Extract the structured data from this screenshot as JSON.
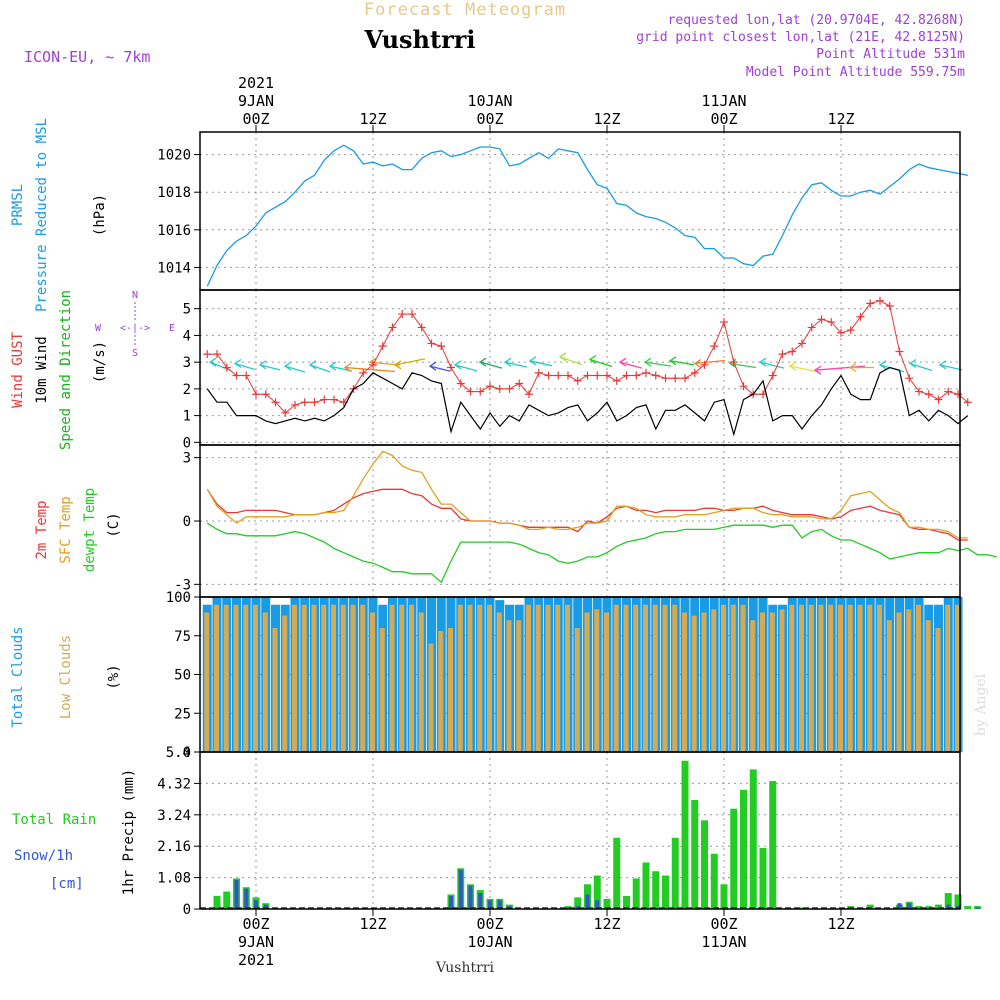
{
  "header": {
    "forecast_title": "Forecast Meteogram",
    "location": "Vushtrri",
    "model": "ICON-EU, ~ 7km",
    "requested": "requested lon,lat (20.9704E, 42.8268N)",
    "grid_point": "grid point closest lon,lat (21E, 42.8125N)",
    "point_altitude": "Point Altitude 531m",
    "model_altitude": "Model Point Altitude 559.75m"
  },
  "footer": {
    "location": "Vushtrri",
    "credit": "by Angel"
  },
  "colors": {
    "pressure": "#1a9be6",
    "gust": "#e83838",
    "wind": "#000000",
    "wind_label": "#19b319",
    "t2m": "#e83838",
    "sfc": "#e0a020",
    "dewpt": "#22cc22",
    "total_clouds": "#1a9be6",
    "low_clouds": "#d4aa55",
    "rain": "#22cc22",
    "snow": "#3355cc",
    "compass": "#a040d0",
    "info": "#a040d0"
  },
  "time_axis": {
    "top_labels": [
      {
        "h": 0,
        "lines": [
          "2021",
          "9JAN",
          "00Z"
        ]
      },
      {
        "h": 12,
        "lines": [
          "12Z"
        ]
      },
      {
        "h": 24,
        "lines": [
          "10JAN",
          "00Z"
        ]
      },
      {
        "h": 36,
        "lines": [
          "12Z"
        ]
      },
      {
        "h": 48,
        "lines": [
          "11JAN",
          "00Z"
        ]
      },
      {
        "h": 60,
        "lines": [
          "12Z"
        ]
      }
    ],
    "bottom_labels": [
      {
        "h": 0,
        "lines": [
          "00Z",
          "9JAN",
          "2021"
        ]
      },
      {
        "h": 12,
        "lines": [
          "12Z"
        ]
      },
      {
        "h": 24,
        "lines": [
          "00Z",
          "10JAN"
        ]
      },
      {
        "h": 36,
        "lines": [
          "12Z"
        ]
      },
      {
        "h": 48,
        "lines": [
          "00Z",
          "11JAN"
        ]
      },
      {
        "h": 60,
        "lines": [
          "12Z"
        ]
      }
    ]
  },
  "panels": {
    "pressure": {
      "labels": [
        "PRMSL",
        "Pressure Reduced to MSL",
        "(hPa)"
      ]
    },
    "wind": {
      "labels": [
        "Wind GUST",
        "10m Wind",
        "Speed and Direction",
        "(m/s)"
      ],
      "compass": {
        "n": "N",
        "s": "S",
        "w": "W",
        "e": "E",
        "arrow": "<-|->"
      }
    },
    "temp": {
      "labels": [
        "2m Temp",
        "SFC Temp",
        "dewpt Temp",
        "(C)"
      ]
    },
    "clouds": {
      "labels": [
        "Total Clouds",
        "Low Clouds",
        "(%)"
      ]
    },
    "precip": {
      "labels": [
        "Total Rain",
        "Snow/1h",
        "[cm]",
        "1hr Precip (mm)"
      ]
    }
  },
  "chart_data": [
    {
      "type": "line",
      "title": "PRMSL Pressure Reduced to MSL",
      "ylabel": "(hPa)",
      "ylim": [
        1012.8,
        1021.2
      ],
      "yticks": [
        1014,
        1016,
        1018,
        1020
      ],
      "x_hours_start": -5,
      "series": [
        {
          "name": "PRMSL",
          "values": [
            1013.0,
            1014.1,
            1014.9,
            1015.4,
            1015.7,
            1016.2,
            1016.9,
            1017.2,
            1017.5,
            1018.0,
            1018.6,
            1018.9,
            1019.7,
            1020.2,
            1020.5,
            1020.2,
            1019.5,
            1019.6,
            1019.4,
            1019.5,
            1019.2,
            1019.2,
            1019.8,
            1020.1,
            1020.2,
            1019.9,
            1020.0,
            1020.2,
            1020.4,
            1020.4,
            1020.3,
            1019.4,
            1019.5,
            1019.8,
            1020.1,
            1019.8,
            1020.3,
            1020.2,
            1020.1,
            1019.2,
            1018.4,
            1018.2,
            1017.4,
            1017.3,
            1016.9,
            1016.7,
            1016.6,
            1016.4,
            1016.1,
            1015.7,
            1015.6,
            1015.0,
            1015.0,
            1014.5,
            1014.5,
            1014.2,
            1014.1,
            1014.6,
            1014.7,
            1015.7,
            1016.8,
            1017.7,
            1018.4,
            1018.5,
            1018.1,
            1017.8,
            1017.8,
            1018.0,
            1018.1,
            1017.9,
            1018.3,
            1018.7,
            1019.2,
            1019.5,
            1019.3,
            1019.2,
            1019.1,
            1019.0,
            1018.9
          ]
        }
      ]
    },
    {
      "type": "line",
      "title": "Wind GUST / 10m Wind Speed and Direction",
      "ylabel": "(m/s)",
      "ylim": [
        -0.1,
        5.7
      ],
      "yticks": [
        0,
        1,
        2,
        3,
        4,
        5
      ],
      "x_hours_start": -5,
      "series": [
        {
          "name": "Wind GUST",
          "values": [
            3.3,
            3.3,
            2.8,
            2.5,
            2.5,
            1.8,
            1.8,
            1.5,
            1.1,
            1.4,
            1.5,
            1.5,
            1.6,
            1.6,
            1.5,
            2.0,
            2.6,
            2.9,
            3.6,
            4.3,
            4.8,
            4.8,
            4.3,
            3.7,
            3.6,
            2.8,
            2.2,
            1.9,
            1.9,
            2.1,
            2.0,
            2.0,
            2.2,
            1.8,
            2.6,
            2.5,
            2.5,
            2.5,
            2.3,
            2.5,
            2.5,
            2.5,
            2.3,
            2.5,
            2.5,
            2.6,
            2.5,
            2.4,
            2.4,
            2.4,
            2.6,
            2.9,
            3.6,
            4.5,
            3.0,
            2.1,
            1.8,
            1.8,
            2.5,
            3.3,
            3.4,
            3.7,
            4.3,
            4.6,
            4.5,
            4.1,
            4.2,
            4.7,
            5.2,
            5.3,
            5.1,
            3.4,
            2.4,
            1.9,
            1.8,
            1.6,
            1.9,
            1.8,
            1.5
          ]
        },
        {
          "name": "10m Wind",
          "values": [
            2.0,
            1.5,
            1.5,
            1.0,
            1.0,
            1.0,
            0.8,
            0.7,
            0.8,
            0.9,
            0.8,
            0.9,
            0.8,
            1.0,
            1.3,
            2.0,
            2.2,
            2.6,
            2.4,
            2.2,
            2.0,
            2.6,
            2.5,
            2.3,
            2.2,
            0.4,
            1.5,
            1.0,
            0.5,
            1.1,
            0.6,
            1.0,
            0.8,
            1.4,
            1.2,
            1.0,
            1.1,
            1.3,
            1.4,
            0.8,
            1.1,
            1.5,
            0.8,
            1.0,
            1.3,
            1.4,
            0.5,
            1.2,
            1.2,
            1.4,
            1.1,
            0.8,
            1.5,
            1.6,
            0.3,
            1.6,
            1.8,
            2.3,
            0.8,
            1.0,
            1.0,
            0.5,
            1.0,
            1.4,
            2.0,
            2.5,
            1.8,
            1.6,
            1.6,
            2.6,
            2.8,
            2.7,
            1.0,
            1.2,
            0.8,
            1.2,
            1.0,
            0.7,
            1.0
          ]
        }
      ]
    },
    {
      "type": "line",
      "title": "2m Temp / SFC Temp / dewpt Temp",
      "ylabel": "(C)",
      "ylim": [
        -3.6,
        3.6
      ],
      "yticks": [
        -3,
        0,
        3
      ],
      "x_hours_start": -5,
      "series": [
        {
          "name": "2m Temp",
          "values": [
            1.5,
            0.8,
            0.4,
            0.4,
            0.5,
            0.5,
            0.5,
            0.5,
            0.4,
            0.3,
            0.3,
            0.3,
            0.4,
            0.5,
            0.8,
            1.1,
            1.3,
            1.4,
            1.5,
            1.5,
            1.5,
            1.3,
            1.2,
            0.8,
            0.6,
            0.6,
            0.1,
            0.0,
            0.0,
            0.0,
            -0.1,
            -0.1,
            -0.2,
            -0.3,
            -0.3,
            -0.3,
            -0.3,
            -0.3,
            -0.5,
            0.0,
            -0.1,
            0.2,
            0.6,
            0.7,
            0.5,
            0.5,
            0.4,
            0.5,
            0.5,
            0.5,
            0.5,
            0.6,
            0.6,
            0.5,
            0.5,
            0.6,
            0.6,
            0.7,
            0.5,
            0.4,
            0.3,
            0.3,
            0.3,
            0.2,
            0.1,
            0.2,
            0.5,
            0.6,
            0.7,
            0.5,
            0.4,
            0.3,
            -0.3,
            -0.4,
            -0.4,
            -0.5,
            -0.6,
            -0.9,
            -0.9
          ]
        },
        {
          "name": "SFC Temp",
          "values": [
            1.5,
            0.7,
            0.3,
            -0.1,
            0.2,
            0.2,
            0.2,
            0.2,
            0.2,
            0.3,
            0.3,
            0.3,
            0.4,
            0.4,
            0.5,
            1.2,
            2.0,
            2.7,
            3.3,
            3.1,
            2.6,
            2.4,
            2.3,
            1.5,
            0.8,
            0.8,
            0.4,
            0.0,
            0.0,
            0.0,
            -0.1,
            -0.1,
            -0.2,
            -0.4,
            -0.4,
            -0.3,
            -0.4,
            -0.4,
            -0.3,
            -0.1,
            -0.1,
            0.0,
            0.7,
            0.7,
            0.6,
            0.3,
            0.2,
            0.2,
            0.2,
            0.3,
            0.3,
            0.3,
            0.4,
            0.5,
            0.6,
            0.6,
            0.6,
            0.4,
            0.3,
            0.3,
            0.2,
            0.2,
            0.2,
            0.1,
            0.1,
            0.5,
            1.2,
            1.3,
            1.4,
            1.0,
            0.6,
            0.4,
            -0.3,
            -0.3,
            -0.4,
            -0.4,
            -0.5,
            -0.8,
            -0.8
          ]
        },
        {
          "name": "dewpt Temp",
          "values": [
            -0.1,
            -0.4,
            -0.6,
            -0.6,
            -0.7,
            -0.7,
            -0.7,
            -0.7,
            -0.6,
            -0.5,
            -0.6,
            -0.8,
            -1.0,
            -1.3,
            -1.5,
            -1.7,
            -1.9,
            -2.0,
            -2.2,
            -2.4,
            -2.4,
            -2.5,
            -2.5,
            -2.5,
            -2.9,
            -1.9,
            -1.0,
            -1.0,
            -1.0,
            -1.0,
            -1.0,
            -1.0,
            -1.1,
            -1.3,
            -1.5,
            -1.6,
            -1.9,
            -2.0,
            -1.9,
            -1.7,
            -1.7,
            -1.5,
            -1.2,
            -1.0,
            -0.9,
            -0.8,
            -0.6,
            -0.5,
            -0.5,
            -0.4,
            -0.4,
            -0.4,
            -0.4,
            -0.3,
            -0.2,
            -0.2,
            -0.2,
            -0.2,
            -0.3,
            -0.2,
            -0.2,
            -0.8,
            -0.5,
            -0.4,
            -0.7,
            -0.9,
            -0.9,
            -1.1,
            -1.3,
            -1.5,
            -1.8,
            -1.7,
            -1.6,
            -1.5,
            -1.5,
            -1.5,
            -1.3,
            -1.4,
            -1.3,
            -1.6,
            -1.6,
            -1.7
          ]
        }
      ]
    },
    {
      "type": "bar",
      "title": "Total Clouds / Low Clouds",
      "ylabel": "(%)",
      "ylim": [
        0,
        100
      ],
      "yticks": [
        0,
        25,
        50,
        75,
        100
      ],
      "x_hours_start": -5,
      "series": [
        {
          "name": "Total Clouds",
          "values": [
            95,
            100,
            100,
            100,
            100,
            100,
            100,
            95,
            95,
            100,
            100,
            100,
            100,
            100,
            100,
            100,
            100,
            100,
            95,
            100,
            100,
            100,
            100,
            100,
            100,
            100,
            100,
            100,
            100,
            100,
            98,
            95,
            95,
            100,
            100,
            100,
            100,
            100,
            100,
            100,
            100,
            100,
            100,
            100,
            100,
            100,
            100,
            100,
            100,
            100,
            100,
            100,
            100,
            100,
            100,
            100,
            100,
            100,
            95,
            95,
            100,
            100,
            100,
            100,
            100,
            100,
            100,
            100,
            100,
            100,
            100,
            100,
            100,
            100,
            95,
            95,
            100,
            100,
            100,
            100,
            100,
            100
          ]
        },
        {
          "name": "Low Clouds",
          "values": [
            90,
            95,
            95,
            95,
            95,
            95,
            90,
            80,
            88,
            95,
            95,
            95,
            95,
            95,
            95,
            95,
            95,
            90,
            80,
            95,
            95,
            95,
            90,
            70,
            78,
            80,
            95,
            95,
            95,
            95,
            90,
            85,
            85,
            95,
            95,
            95,
            95,
            95,
            80,
            90,
            92,
            90,
            95,
            95,
            95,
            95,
            95,
            95,
            95,
            90,
            88,
            90,
            92,
            95,
            95,
            95,
            85,
            90,
            90,
            92,
            95,
            95,
            95,
            95,
            95,
            95,
            95,
            95,
            95,
            95,
            85,
            90,
            92,
            95,
            85,
            80,
            95,
            95,
            95,
            80,
            80,
            75
          ]
        }
      ]
    },
    {
      "type": "bar",
      "title": "Total Rain / Snow 1hr Precip",
      "ylabel": "1hr Precip (mm)",
      "ylim": [
        0,
        5.4
      ],
      "yticks": [
        0,
        1.08,
        2.16,
        3.24,
        4.32,
        5.4
      ],
      "x_hours_start": -4,
      "series": [
        {
          "name": "Total Rain",
          "values": [
            0.45,
            0.6,
            1.05,
            0.75,
            0.4,
            0.2,
            0,
            0,
            0,
            0,
            0,
            0,
            0,
            0,
            0,
            0,
            0,
            0,
            0,
            0,
            0,
            0,
            0,
            0,
            0.5,
            1.4,
            0.85,
            0.65,
            0.35,
            0.35,
            0.15,
            0,
            0,
            0,
            0,
            0,
            0.1,
            0.4,
            0.85,
            1.15,
            0.35,
            2.45,
            0.45,
            1.05,
            1.6,
            1.3,
            1.15,
            2.45,
            5.1,
            3.75,
            3.05,
            1.9,
            0.85,
            3.45,
            4.1,
            4.8,
            2.1,
            4.4,
            0,
            0,
            0.05,
            0,
            0,
            0,
            0,
            0.1,
            0.05,
            0.15,
            0,
            0,
            0.15,
            0.25,
            0.1,
            0.1,
            0.15,
            0.55,
            0.5,
            0.1,
            0.1
          ]
        },
        {
          "name": "Snow/1h",
          "values": [
            0,
            0,
            1.0,
            0.7,
            0.3,
            0.15,
            0,
            0,
            0,
            0,
            0,
            0,
            0,
            0,
            0,
            0,
            0,
            0,
            0,
            0,
            0,
            0,
            0,
            0,
            0.45,
            1.35,
            0.8,
            0.55,
            0.3,
            0.3,
            0.1,
            0,
            0,
            0,
            0,
            0,
            0.05,
            0.1,
            0.5,
            0.3,
            0,
            0,
            0,
            0,
            0,
            0,
            0,
            0,
            0,
            0,
            0,
            0,
            0,
            0,
            0,
            0,
            0,
            0,
            0,
            0,
            0,
            0,
            0,
            0,
            0,
            0,
            0,
            0,
            0,
            0,
            0.2,
            0.2,
            0,
            0,
            0,
            0.15,
            0.1,
            0,
            0.05
          ]
        }
      ]
    }
  ]
}
